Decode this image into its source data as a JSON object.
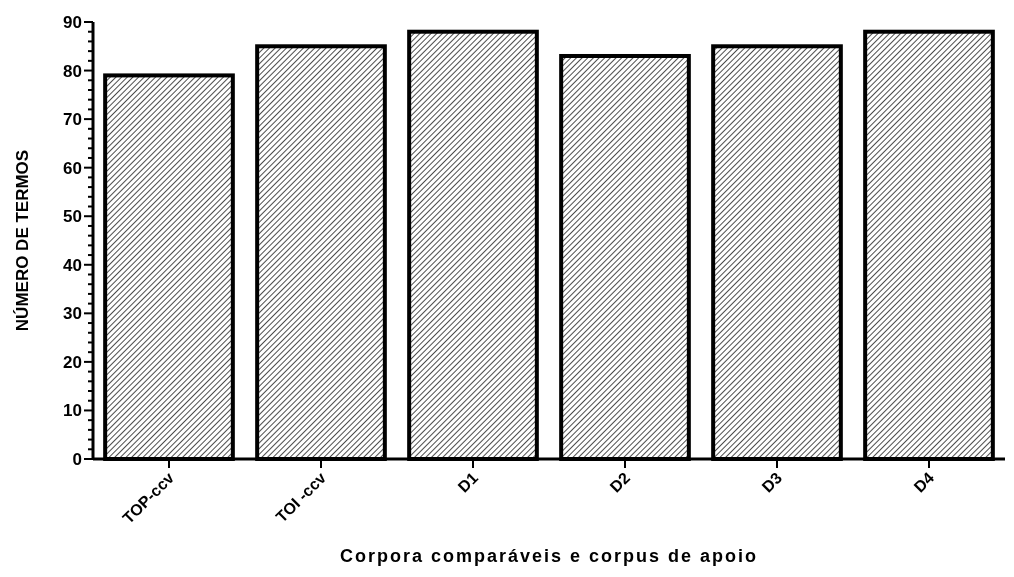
{
  "chart_data": {
    "type": "bar",
    "xlabel": "Corpora comparáveis e corpus de apoio",
    "ylabel": "NÚMERO DE TERMOS",
    "categories": [
      "TOP-ccv",
      "TOI -ccv",
      "D1",
      "D2",
      "D3",
      "D4"
    ],
    "values": [
      79,
      85,
      88,
      83,
      85,
      88
    ],
    "color": "#000000",
    "ylim": [
      0,
      90
    ],
    "yticks": [
      0,
      {
        "value": 2,
        "label": null
      },
      {
        "value": 4,
        "label": null
      },
      {
        "value": 6,
        "label": null
      },
      {
        "value": 8,
        "label": null
      },
      10,
      {
        "value": 12,
        "label": null
      },
      {
        "value": 14,
        "label": null
      },
      {
        "value": 16,
        "label": null
      },
      {
        "value": 18,
        "label": null
      },
      20,
      {
        "value": 22,
        "label": null
      },
      {
        "value": 24,
        "label": null
      },
      {
        "value": 26,
        "label": null
      },
      {
        "value": 28,
        "label": null
      },
      30,
      {
        "value": 32,
        "label": null
      },
      {
        "value": 34,
        "label": null
      },
      {
        "value": 36,
        "label": null
      },
      {
        "value": 38,
        "label": null
      },
      40,
      {
        "value": 42,
        "label": null
      },
      {
        "value": 44,
        "label": null
      },
      {
        "value": 46,
        "label": null
      },
      {
        "value": 48,
        "label": null
      },
      50,
      {
        "value": 52,
        "label": null
      },
      {
        "value": 54,
        "label": null
      },
      {
        "value": 56,
        "label": null
      },
      {
        "value": 58,
        "label": null
      },
      60,
      {
        "value": 62,
        "label": null
      },
      {
        "value": 64,
        "label": null
      },
      {
        "value": 66,
        "label": null
      },
      {
        "value": 68,
        "label": null
      },
      70,
      {
        "value": 72,
        "label": null
      },
      {
        "value": 74,
        "label": null
      },
      {
        "value": 76,
        "label": null
      },
      {
        "value": 78,
        "label": null
      },
      80,
      {
        "value": 82,
        "label": null
      },
      {
        "value": 84,
        "label": null
      },
      {
        "value": 86,
        "label": null
      },
      {
        "value": 88,
        "label": null
      },
      90
    ]
  }
}
